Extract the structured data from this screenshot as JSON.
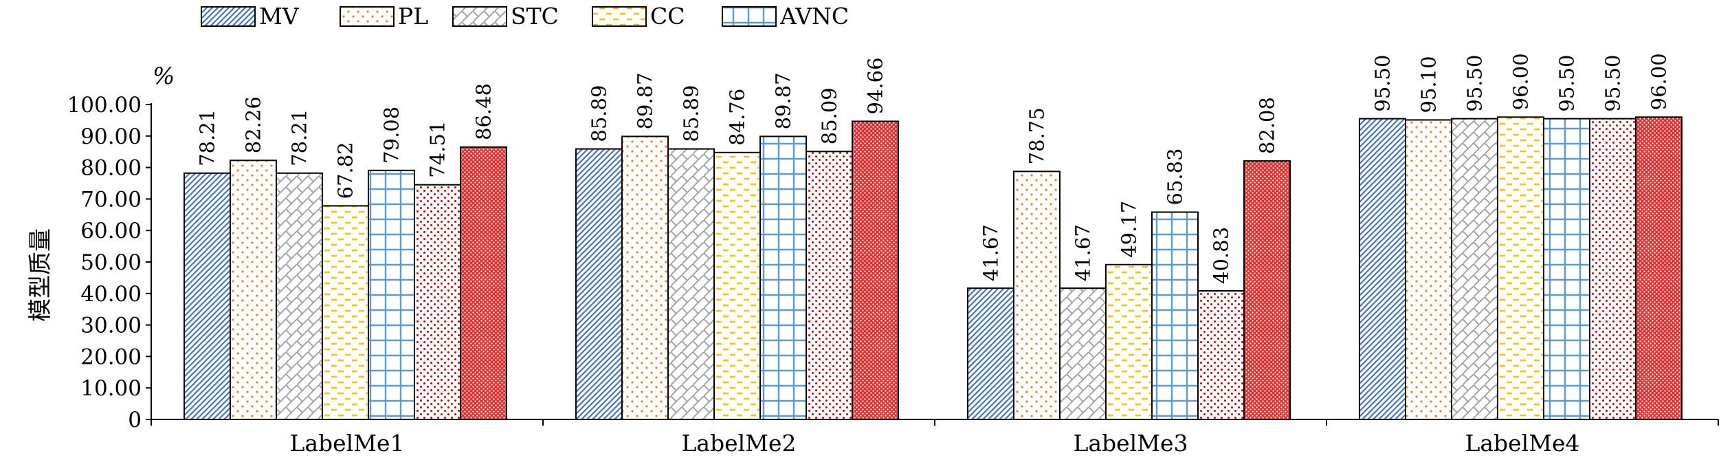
{
  "chart_data": {
    "type": "bar",
    "categories": [
      "LabelMe1",
      "LabelMe2",
      "LabelMe3",
      "LabelMe4"
    ],
    "series": [
      {
        "name": "MV",
        "values": [
          78.21,
          85.89,
          41.67,
          95.5
        ],
        "labels": [
          "78.21",
          "85.89",
          "41.67",
          "95.50"
        ],
        "pattern": "diag",
        "color": "#4472c4"
      },
      {
        "name": "PL",
        "values": [
          82.26,
          89.87,
          78.75,
          95.1
        ],
        "labels": [
          "82.26",
          "89.87",
          "78.75",
          "95.10"
        ],
        "pattern": "dots",
        "color": "#ed7d31"
      },
      {
        "name": "STC",
        "values": [
          78.21,
          85.89,
          41.67,
          95.5
        ],
        "labels": [
          "78.21",
          "85.89",
          "41.67",
          "95.50"
        ],
        "pattern": "weave",
        "color": "#a5a5a5"
      },
      {
        "name": "CC",
        "values": [
          67.82,
          84.76,
          49.17,
          96.0
        ],
        "labels": [
          "67.82",
          "84.76",
          "49.17",
          "96.00"
        ],
        "pattern": "dashes",
        "color": "#ffc000"
      },
      {
        "name": "AVNC",
        "values": [
          79.08,
          89.87,
          65.83,
          95.5
        ],
        "labels": [
          "79.08",
          "89.87",
          "65.83",
          "95.50"
        ],
        "pattern": "grid",
        "color": "#5b9bd5"
      },
      {
        "name": "",
        "values": [
          74.51,
          85.09,
          40.83,
          95.5
        ],
        "labels": [
          "74.51",
          "85.09",
          "40.83",
          "95.50"
        ],
        "pattern": "sparse",
        "color": "#c00000"
      },
      {
        "name": "",
        "values": [
          86.48,
          94.66,
          82.08,
          96.0
        ],
        "labels": [
          "86.48",
          "94.66",
          "82.08",
          "96.00"
        ],
        "pattern": "dense",
        "color": "#e03030"
      }
    ],
    "ylabel": "模型质量",
    "unit": "%",
    "ylim": [
      0,
      100
    ],
    "yticks": [
      "0",
      "10.00",
      "20.00",
      "30.00",
      "40.00",
      "50.00",
      "60.00",
      "70.00",
      "80.00",
      "90.00",
      "100.00"
    ],
    "grid": false,
    "legend": "top-left"
  }
}
